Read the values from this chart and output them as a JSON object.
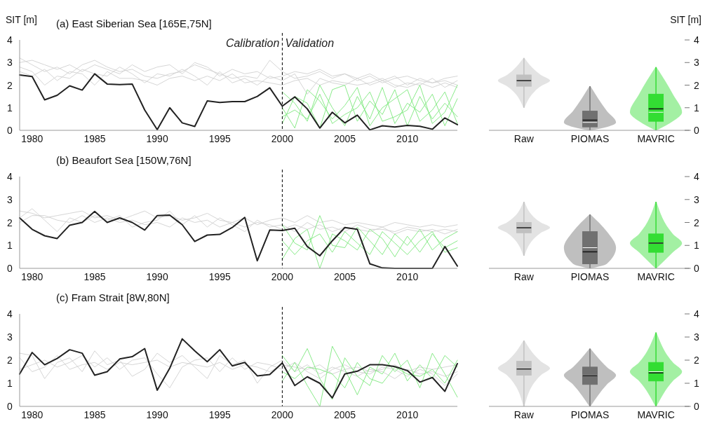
{
  "chart_data": [
    {
      "type": "line",
      "title": "(a) East Siberian Sea [165E,75N]",
      "ylabel": "SIT [m]",
      "xlim": [
        1979,
        2014
      ],
      "ylim": [
        0,
        4
      ],
      "xticks": [
        1980,
        1985,
        1990,
        1995,
        2000,
        2005,
        2010
      ],
      "yticks": [
        0,
        1,
        2,
        3,
        4
      ],
      "ref_lines": [
        {
          "axis": "x",
          "value": 2000,
          "color": "#000000",
          "line_style": "dashed"
        }
      ],
      "annotations": [
        {
          "text": "Calibration",
          "x": 2000,
          "y": 3.7
        },
        {
          "text": "Validation",
          "x": 2000,
          "y": 3.7
        }
      ],
      "series": [
        {
          "color": "#d0d0d0",
          "x": [
            1979,
            1980,
            1981,
            1982,
            1983,
            1984,
            1985,
            1986,
            1987,
            1988,
            1989,
            1990,
            1991,
            1992,
            1993,
            1994,
            1995,
            1996,
            1997,
            1998,
            1999,
            2000,
            2001,
            2002,
            2003,
            2004,
            2005,
            2006,
            2007,
            2008,
            2009,
            2010,
            2011,
            2012,
            2013,
            2014
          ],
          "values": [
            3.2,
            2.9,
            2.6,
            2.8,
            2.5,
            2.9,
            3.1,
            2.8,
            2.6,
            2.7,
            2.4,
            2.3,
            2.5,
            2.6,
            2.9,
            2.7,
            2.5,
            2.3,
            2.4,
            2.3,
            3.1,
            2.6,
            2.3,
            2.4,
            2.6,
            2.3,
            2.5,
            2.2,
            2.4,
            2.1,
            2.3,
            2.4,
            2.2,
            2.1,
            2.3,
            2.4
          ]
        },
        {
          "color": "#d0d0d0",
          "x": [
            1979,
            1980,
            1981,
            1982,
            1983,
            1984,
            1985,
            1986,
            1987,
            1988,
            1989,
            1990,
            1991,
            1992,
            1993,
            1994,
            1995,
            1996,
            1997,
            1998,
            1999,
            2000,
            2001,
            2002,
            2003,
            2004,
            2005,
            2006,
            2007,
            2008,
            2009,
            2010,
            2011,
            2012,
            2013,
            2014
          ],
          "values": [
            2.8,
            2.6,
            2.0,
            2.4,
            2.3,
            2.7,
            2.5,
            2.4,
            2.8,
            2.5,
            2.1,
            2.5,
            2.4,
            2.7,
            2.4,
            2.0,
            2.6,
            2.1,
            2.3,
            2.0,
            2.4,
            2.2,
            2.5,
            1.6,
            2.3,
            2.1,
            2.0,
            2.3,
            2.0,
            2.2,
            1.9,
            2.1,
            2.0,
            2.3,
            1.9,
            2.2
          ]
        },
        {
          "color": "#d0d0d0",
          "x": [
            1979,
            1980,
            1981,
            1982,
            1983,
            1984,
            1985,
            1986,
            1987,
            1988,
            1989,
            1990,
            1991,
            1992,
            1993,
            1994,
            1995,
            1996,
            1997,
            1998,
            1999,
            2000,
            2001,
            2002,
            2003,
            2004,
            2005,
            2006,
            2007,
            2008,
            2009,
            2010,
            2011,
            2012,
            2013,
            2014
          ],
          "values": [
            3.0,
            3.1,
            2.9,
            2.7,
            2.9,
            2.6,
            2.9,
            2.7,
            2.5,
            2.9,
            2.6,
            2.8,
            2.9,
            2.5,
            3.0,
            2.8,
            2.4,
            2.7,
            2.5,
            2.6,
            2.3,
            2.4,
            2.6,
            2.5,
            2.7,
            2.4,
            2.5,
            2.3,
            2.5,
            2.2,
            2.4,
            2.0,
            2.3,
            2.1,
            2.2,
            2.0
          ]
        },
        {
          "color": "#d0d0d0",
          "x": [
            1979,
            1980,
            1981,
            1982,
            1983,
            1984,
            1985,
            1986,
            1987,
            1988,
            1989,
            1990,
            1991,
            1992,
            1993,
            1994,
            1995,
            1996,
            1997,
            1998,
            1999,
            2000,
            2001,
            2002,
            2003,
            2004,
            2005,
            2006,
            2007,
            2008,
            2009,
            2010,
            2011,
            2012,
            2013,
            2014
          ],
          "values": [
            2.6,
            2.4,
            2.7,
            2.2,
            2.6,
            2.5,
            2.0,
            2.6,
            2.3,
            2.3,
            2.2,
            2.0,
            2.3,
            2.4,
            2.2,
            2.4,
            2.2,
            2.5,
            2.1,
            2.2,
            2.1,
            2.0,
            2.2,
            2.3,
            2.0,
            2.2,
            2.1,
            2.0,
            2.1,
            2.3,
            2.0,
            1.9,
            2.1,
            1.9,
            2.1,
            1.9
          ]
        },
        {
          "color": "#7de87d",
          "x": [
            2000,
            2001,
            2002,
            2003,
            2004,
            2005,
            2006,
            2007,
            2008,
            2009,
            2010,
            2011,
            2012,
            2013,
            2014
          ],
          "values": [
            1.7,
            1.2,
            0.4,
            2.0,
            1.0,
            0.2,
            1.5,
            0.5,
            1.9,
            0.3,
            1.2,
            0.8,
            1.6,
            0.2,
            1.4
          ]
        },
        {
          "color": "#7de87d",
          "x": [
            2000,
            2001,
            2002,
            2003,
            2004,
            2005,
            2006,
            2007,
            2008,
            2009,
            2010,
            2011,
            2012,
            2013,
            2014
          ],
          "values": [
            0.3,
            1.5,
            1.2,
            0.1,
            1.8,
            2.0,
            0.4,
            1.3,
            0.7,
            1.8,
            0.2,
            1.5,
            0.5,
            1.2,
            0.6
          ]
        },
        {
          "color": "#7de87d",
          "x": [
            2000,
            2001,
            2002,
            2003,
            2004,
            2005,
            2006,
            2007,
            2008,
            2009,
            2010,
            2011,
            2012,
            2013,
            2014
          ],
          "values": [
            1.0,
            0.1,
            1.8,
            1.3,
            0.5,
            1.1,
            1.9,
            0.2,
            1.0,
            1.4,
            1.8,
            0.4,
            0.9,
            1.7,
            0.3
          ]
        },
        {
          "color": "#7de87d",
          "x": [
            2000,
            2001,
            2002,
            2003,
            2004,
            2005,
            2006,
            2007,
            2008,
            2009,
            2010,
            2011,
            2012,
            2013,
            2014
          ],
          "values": [
            0.6,
            0.9,
            0.5,
            1.6,
            0.3,
            0.7,
            1.0,
            1.7,
            0.4,
            0.6,
            0.9,
            2.0,
            0.3,
            0.8,
            2.0
          ]
        },
        {
          "color": "#222222",
          "x": [
            1979,
            1980,
            1981,
            1982,
            1983,
            1984,
            1985,
            1986,
            1987,
            1988,
            1989,
            1990,
            1991,
            1992,
            1993,
            1994,
            1995,
            1996,
            1997,
            1998,
            1999,
            2000,
            2001,
            2002,
            2003,
            2004,
            2005,
            2006,
            2007,
            2008,
            2009,
            2010,
            2011,
            2012,
            2013,
            2014
          ],
          "values": [
            2.45,
            2.38,
            1.35,
            1.55,
            1.97,
            1.78,
            2.5,
            2.05,
            2.02,
            2.05,
            0.9,
            0.03,
            1.0,
            0.33,
            0.17,
            1.3,
            1.23,
            1.27,
            1.27,
            1.5,
            1.88,
            1.07,
            1.48,
            0.95,
            0.1,
            0.8,
            0.33,
            0.67,
            0.02,
            0.2,
            0.15,
            0.22,
            0.18,
            0.05,
            0.55,
            0.25
          ]
        }
      ]
    },
    {
      "type": "box",
      "y2label": "SIT [m]",
      "categories": [
        "Raw",
        "PIOMAS",
        "MAVRIC"
      ],
      "colors": [
        "#c0c0c0",
        "#707070",
        "#33dd33"
      ],
      "ylim": [
        0,
        4
      ],
      "yticks": [
        0,
        1,
        2,
        3,
        4
      ],
      "boxes": [
        {
          "low": 1.0,
          "q1": 1.95,
          "median": 2.2,
          "q3": 2.45,
          "high": 3.2,
          "mean": 2.2
        },
        {
          "low": 0,
          "q1": 0.15,
          "median": 0.35,
          "q3": 0.85,
          "high": 1.95,
          "mean": 0.45
        },
        {
          "low": 0,
          "q1": 0.4,
          "median": 0.8,
          "q3": 1.6,
          "high": 2.8,
          "mean": 0.95
        }
      ]
    },
    {
      "type": "line",
      "title": "(b) Beaufort Sea [150W,76N]",
      "xlim": [
        1979,
        2014
      ],
      "ylim": [
        0,
        4
      ],
      "xticks": [
        1980,
        1985,
        1990,
        1995,
        2000,
        2005,
        2010
      ],
      "yticks": [
        0,
        1,
        2,
        3,
        4
      ],
      "ref_lines": [
        {
          "axis": "x",
          "value": 2000,
          "color": "#000000",
          "line_style": "dashed"
        }
      ],
      "series": [
        {
          "color": "#d0d0d0",
          "x": [
            1979,
            1980,
            1981,
            1982,
            1983,
            1984,
            1985,
            1986,
            1987,
            1988,
            1989,
            1990,
            1991,
            1992,
            1993,
            1994,
            1995,
            1996,
            1997,
            1998,
            1999,
            2000,
            2001,
            2002,
            2003,
            2004,
            2005,
            2006,
            2007,
            2008,
            2009,
            2010,
            2011,
            2012,
            2013,
            2014
          ],
          "values": [
            2.5,
            2.4,
            2.2,
            2.3,
            2.4,
            2.5,
            2.2,
            2.3,
            2.1,
            2.3,
            2.5,
            2.2,
            2.3,
            2.1,
            2.2,
            2.4,
            2.1,
            2.0,
            2.2,
            1.9,
            2.1,
            2.2,
            2.0,
            2.3,
            2.0,
            2.1,
            1.9,
            2.0,
            1.9,
            1.8,
            2.0,
            1.9,
            1.8,
            1.9,
            1.8,
            1.9
          ]
        },
        {
          "color": "#d0d0d0",
          "x": [
            1979,
            1980,
            1981,
            1982,
            1983,
            1984,
            1985,
            1986,
            1987,
            1988,
            1989,
            1990,
            1991,
            1992,
            1993,
            1994,
            1995,
            1996,
            1997,
            1998,
            1999,
            2000,
            2001,
            2002,
            2003,
            2004,
            2005,
            2006,
            2007,
            2008,
            2009,
            2010,
            2011,
            2012,
            2013,
            2014
          ],
          "values": [
            2.2,
            2.6,
            2.1,
            1.6,
            2.2,
            2.0,
            2.3,
            2.1,
            2.3,
            1.8,
            2.0,
            2.1,
            2.5,
            1.9,
            2.3,
            1.8,
            2.2,
            1.9,
            1.6,
            2.1,
            1.8,
            1.9,
            1.6,
            2.0,
            1.7,
            1.8,
            1.6,
            1.9,
            1.7,
            1.7,
            1.6,
            1.8,
            1.7,
            1.6,
            1.7,
            1.6
          ]
        },
        {
          "color": "#d0d0d0",
          "x": [
            1979,
            1980,
            1981,
            1982,
            1983,
            1984,
            1985,
            1986,
            1987,
            1988,
            1989,
            1990,
            1991,
            1992,
            1993,
            1994,
            1995,
            1996,
            1997,
            1998,
            1999,
            2000,
            2001,
            2002,
            2003,
            2004,
            2005,
            2006,
            2007,
            2008,
            2009,
            2010,
            2011,
            2012,
            2013,
            2014
          ],
          "values": [
            2.0,
            2.3,
            2.3,
            2.1,
            2.0,
            2.3,
            2.0,
            2.2,
            2.0,
            2.1,
            1.9,
            2.0,
            1.8,
            2.2,
            2.0,
            2.1,
            1.8,
            2.0,
            1.8,
            2.0,
            1.9,
            1.7,
            1.9,
            1.7,
            1.9,
            1.6,
            1.8,
            1.7,
            1.6,
            1.8,
            1.5,
            1.7,
            1.6,
            1.7,
            1.5,
            1.7
          ]
        },
        {
          "color": "#7de87d",
          "x": [
            2000,
            2001,
            2002,
            2003,
            2004,
            2005,
            2006,
            2007,
            2008,
            2009,
            2010,
            2011,
            2012,
            2013,
            2014
          ],
          "values": [
            1.9,
            1.1,
            0.8,
            2.3,
            1.0,
            0.9,
            1.8,
            1.2,
            0.6,
            1.5,
            1.0,
            1.7,
            0.8,
            1.3,
            1.6
          ]
        },
        {
          "color": "#7de87d",
          "x": [
            2000,
            2001,
            2002,
            2003,
            2004,
            2005,
            2006,
            2007,
            2008,
            2009,
            2010,
            2011,
            2012,
            2013,
            2014
          ],
          "values": [
            0.4,
            1.3,
            1.7,
            0.0,
            1.5,
            1.2,
            0.8,
            1.7,
            1.3,
            0.5,
            1.4,
            0.7,
            1.5,
            0.9,
            1.2
          ]
        },
        {
          "color": "#7de87d",
          "x": [
            2000,
            2001,
            2002,
            2003,
            2004,
            2005,
            2006,
            2007,
            2008,
            2009,
            2010,
            2011,
            2012,
            2013,
            2014
          ],
          "values": [
            1.2,
            0.6,
            1.2,
            1.5,
            0.7,
            1.6,
            1.1,
            0.6,
            1.6,
            1.1,
            0.6,
            1.2,
            1.6,
            0.7,
            0.9
          ]
        },
        {
          "color": "#222222",
          "x": [
            1979,
            1980,
            1981,
            1982,
            1983,
            1984,
            1985,
            1986,
            1987,
            1988,
            1989,
            1990,
            1991,
            1992,
            1993,
            1994,
            1995,
            1996,
            1997,
            1998,
            1999,
            2000,
            2001,
            2002,
            2003,
            2004,
            2005,
            2006,
            2007,
            2008,
            2009,
            2010,
            2011,
            2012,
            2013,
            2014
          ],
          "values": [
            2.2,
            1.7,
            1.42,
            1.3,
            1.88,
            2.0,
            2.48,
            2.0,
            2.2,
            2.0,
            1.67,
            2.3,
            2.32,
            1.9,
            1.17,
            1.45,
            1.48,
            1.78,
            2.22,
            0.33,
            1.67,
            1.65,
            1.75,
            0.95,
            0.55,
            1.2,
            1.78,
            1.7,
            0.2,
            0.02,
            0,
            0,
            0,
            0,
            0.95,
            0.1
          ]
        }
      ]
    },
    {
      "type": "box",
      "categories": [
        "Raw",
        "PIOMAS",
        "MAVRIC"
      ],
      "colors": [
        "#c0c0c0",
        "#707070",
        "#33dd33"
      ],
      "ylim": [
        0,
        4
      ],
      "yticks": [
        0,
        1,
        2,
        3,
        4
      ],
      "boxes": [
        {
          "low": 0.55,
          "q1": 1.55,
          "median": 1.78,
          "q3": 2.0,
          "high": 2.9,
          "mean": 1.77
        },
        {
          "low": 0,
          "q1": 0.2,
          "median": 0.9,
          "q3": 1.6,
          "high": 2.35,
          "mean": 0.72
        },
        {
          "low": 0,
          "q1": 0.7,
          "median": 1.1,
          "q3": 1.5,
          "high": 2.9,
          "mean": 1.1
        }
      ]
    },
    {
      "type": "line",
      "title": "(c) Fram Strait [8W,80N]",
      "xlim": [
        1979,
        2014
      ],
      "ylim": [
        0,
        4
      ],
      "xticks": [
        1980,
        1985,
        1990,
        1995,
        2000,
        2005,
        2010
      ],
      "yticks": [
        0,
        1,
        2,
        3,
        4
      ],
      "ref_lines": [
        {
          "axis": "x",
          "value": 2000,
          "color": "#000000",
          "line_style": "dashed"
        }
      ],
      "series": [
        {
          "color": "#d0d0d0",
          "x": [
            1979,
            1980,
            1981,
            1982,
            1983,
            1984,
            1985,
            1986,
            1987,
            1988,
            1989,
            1990,
            1991,
            1992,
            1993,
            1994,
            1995,
            1996,
            1997,
            1998,
            1999,
            2000,
            2001,
            2002,
            2003,
            2004,
            2005,
            2006,
            2007,
            2008,
            2009,
            2010,
            2011,
            2012,
            2013,
            2014
          ],
          "values": [
            2.3,
            2.2,
            1.2,
            1.9,
            2.1,
            1.5,
            2.4,
            1.8,
            2.0,
            1.3,
            1.6,
            2.3,
            1.9,
            2.2,
            1.7,
            1.2,
            2.2,
            1.8,
            2.0,
            1.0,
            1.7,
            2.0,
            1.5,
            1.8,
            1.4,
            1.7,
            1.5,
            1.3,
            1.6,
            1.5,
            1.2,
            1.6,
            1.4,
            1.5,
            1.3,
            1.5
          ]
        },
        {
          "color": "#d0d0d0",
          "x": [
            1979,
            1980,
            1981,
            1982,
            1983,
            1984,
            1985,
            1986,
            1987,
            1988,
            1989,
            1990,
            1991,
            1992,
            1993,
            1994,
            1995,
            1996,
            1997,
            1998,
            1999,
            2000,
            2001,
            2002,
            2003,
            2004,
            2005,
            2006,
            2007,
            2008,
            2009,
            2010,
            2011,
            2012,
            2013,
            2014
          ],
          "values": [
            1.6,
            1.8,
            2.0,
            1.7,
            1.9,
            2.2,
            1.7,
            2.1,
            1.6,
            2.0,
            2.1,
            1.4,
            0.8,
            1.7,
            2.0,
            2.1,
            1.5,
            2.1,
            1.6,
            1.9,
            1.8,
            1.6,
            1.9,
            1.5,
            1.2,
            1.6,
            1.8,
            1.5,
            1.4,
            1.7,
            1.6,
            1.3,
            1.6,
            1.4,
            0.9,
            1.4
          ]
        },
        {
          "color": "#d0d0d0",
          "x": [
            1979,
            1980,
            1981,
            1982,
            1983,
            1984,
            1985,
            1986,
            1987,
            1988,
            1989,
            1990,
            1991,
            1992,
            1993,
            1994,
            1995,
            1996,
            1997,
            1998,
            1999,
            2000,
            2001,
            2002,
            2003,
            2004,
            2005,
            2006,
            2007,
            2008,
            2009,
            2010,
            2011,
            2012,
            2013,
            2014
          ],
          "values": [
            2.1,
            1.5,
            1.7,
            2.2,
            1.6,
            1.8,
            1.9,
            1.6,
            1.9,
            1.8,
            1.9,
            2.0,
            1.7,
            1.9,
            1.8,
            1.7,
            1.9,
            1.6,
            1.8,
            1.7,
            1.5,
            1.8,
            1.7,
            1.6,
            1.8,
            1.4,
            1.6,
            1.7,
            1.5,
            1.6,
            1.8,
            1.5,
            1.7,
            1.6,
            1.7,
            1.8
          ]
        },
        {
          "color": "#7de87d",
          "x": [
            2000,
            2001,
            2002,
            2003,
            2004,
            2005,
            2006,
            2007,
            2008,
            2009,
            2010,
            2011,
            2012,
            2013,
            2014
          ],
          "values": [
            2.2,
            1.5,
            2.5,
            1.2,
            0.3,
            2.1,
            1.3,
            0.9,
            2.2,
            1.5,
            2.0,
            0.8,
            2.3,
            1.4,
            0.4
          ]
        },
        {
          "color": "#7de87d",
          "x": [
            2000,
            2001,
            2002,
            2003,
            2004,
            2005,
            2006,
            2007,
            2008,
            2009,
            2010,
            2011,
            2012,
            2013,
            2014
          ],
          "values": [
            1.1,
            1.9,
            0.9,
            0.0,
            2.6,
            1.6,
            0.5,
            1.7,
            1.4,
            2.3,
            1.1,
            1.8,
            1.2,
            2.2,
            1.7
          ]
        },
        {
          "color": "#7de87d",
          "x": [
            2000,
            2001,
            2002,
            2003,
            2004,
            2005,
            2006,
            2007,
            2008,
            2009,
            2010,
            2011,
            2012,
            2013,
            2014
          ],
          "values": [
            1.5,
            1.2,
            1.7,
            1.6,
            1.4,
            0.8,
            1.9,
            1.2,
            1.0,
            1.7,
            1.4,
            1.3,
            1.6,
            1.0,
            2.0
          ]
        },
        {
          "color": "#222222",
          "x": [
            1979,
            1980,
            1981,
            1982,
            1983,
            1984,
            1985,
            1986,
            1987,
            1988,
            1989,
            1990,
            1991,
            1992,
            1993,
            1994,
            1995,
            1996,
            1997,
            1998,
            1999,
            2000,
            2001,
            2002,
            2003,
            2004,
            2005,
            2006,
            2007,
            2008,
            2009,
            2010,
            2011,
            2012,
            2013,
            2014
          ],
          "values": [
            1.4,
            2.33,
            1.8,
            2.07,
            2.45,
            2.3,
            1.35,
            1.5,
            2.05,
            2.15,
            2.5,
            0.7,
            1.65,
            2.92,
            2.4,
            1.93,
            2.45,
            1.75,
            1.9,
            1.32,
            1.38,
            1.88,
            0.9,
            1.28,
            1.0,
            0.37,
            1.4,
            1.52,
            1.8,
            1.8,
            1.72,
            1.55,
            1.05,
            1.25,
            0.65,
            1.85
          ]
        }
      ]
    },
    {
      "type": "box",
      "categories": [
        "Raw",
        "PIOMAS",
        "MAVRIC"
      ],
      "colors": [
        "#c0c0c0",
        "#707070",
        "#33dd33"
      ],
      "ylim": [
        0,
        4
      ],
      "yticks": [
        0,
        1,
        2,
        3,
        4
      ],
      "boxes": [
        {
          "low": 0,
          "q1": 1.35,
          "median": 1.65,
          "q3": 1.95,
          "high": 2.85,
          "mean": 1.62
        },
        {
          "low": 0,
          "q1": 0.95,
          "median": 1.35,
          "q3": 1.7,
          "high": 2.5,
          "mean": 1.33
        },
        {
          "low": 0,
          "q1": 1.1,
          "median": 1.5,
          "q3": 1.9,
          "high": 3.2,
          "mean": 1.45
        }
      ]
    }
  ]
}
